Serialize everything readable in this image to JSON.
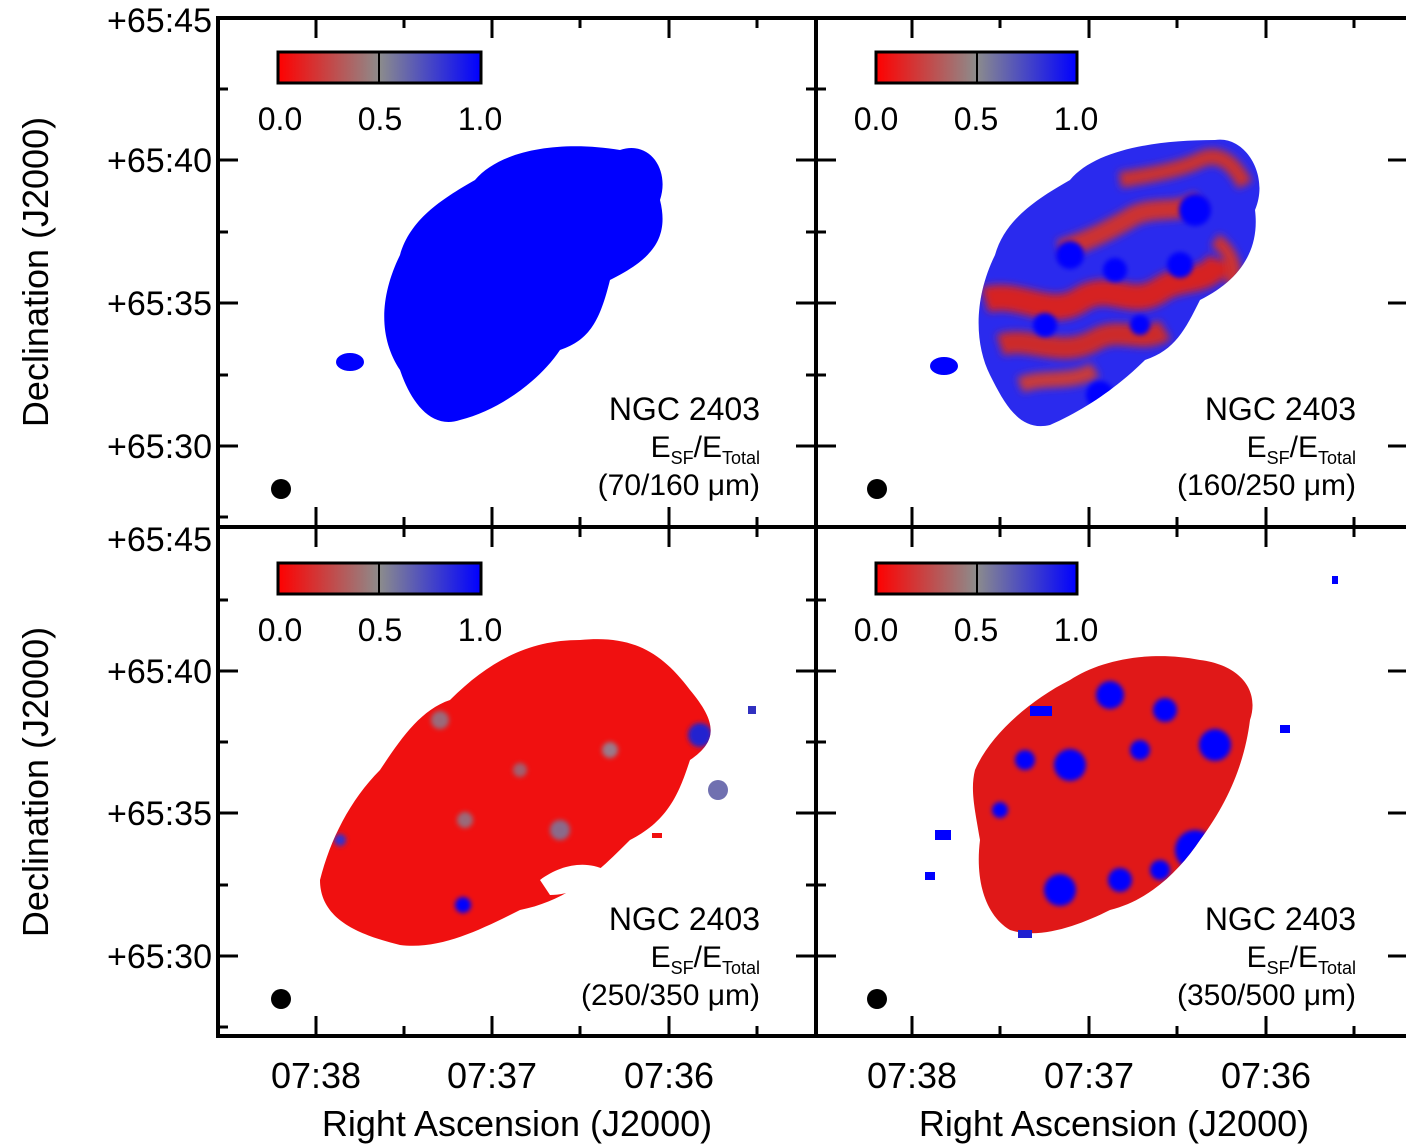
{
  "axes": {
    "ylabel": "Declination (J2000)",
    "xlabel": "Right Ascension (J2000)",
    "dec_ticks": [
      "+65:45",
      "+65:40",
      "+65:35",
      "+65:30"
    ],
    "ra_ticks": [
      "07:38",
      "07:37",
      "07:36"
    ]
  },
  "colorbar": {
    "ticks": [
      "0.0",
      "0.5",
      "1.0"
    ],
    "colors": [
      "#ff0000",
      "#888888",
      "#0000ff"
    ]
  },
  "panels": [
    {
      "object": "NGC 2403",
      "ratio_main": "E",
      "ratio_sub1": "SF",
      "ratio_mid": "/E",
      "ratio_sub2": "Total",
      "band": "(70/160 μm)",
      "dominant": "blue"
    },
    {
      "object": "NGC 2403",
      "ratio_main": "E",
      "ratio_sub1": "SF",
      "ratio_mid": "/E",
      "ratio_sub2": "Total",
      "band": "(160/250 μm)",
      "dominant": "mixed"
    },
    {
      "object": "NGC 2403",
      "ratio_main": "E",
      "ratio_sub1": "SF",
      "ratio_mid": "/E",
      "ratio_sub2": "Total",
      "band": "(250/350 μm)",
      "dominant": "red"
    },
    {
      "object": "NGC 2403",
      "ratio_main": "E",
      "ratio_sub1": "SF",
      "ratio_mid": "/E",
      "ratio_sub2": "Total",
      "band": "(350/500 μm)",
      "dominant": "red-blue"
    }
  ]
}
